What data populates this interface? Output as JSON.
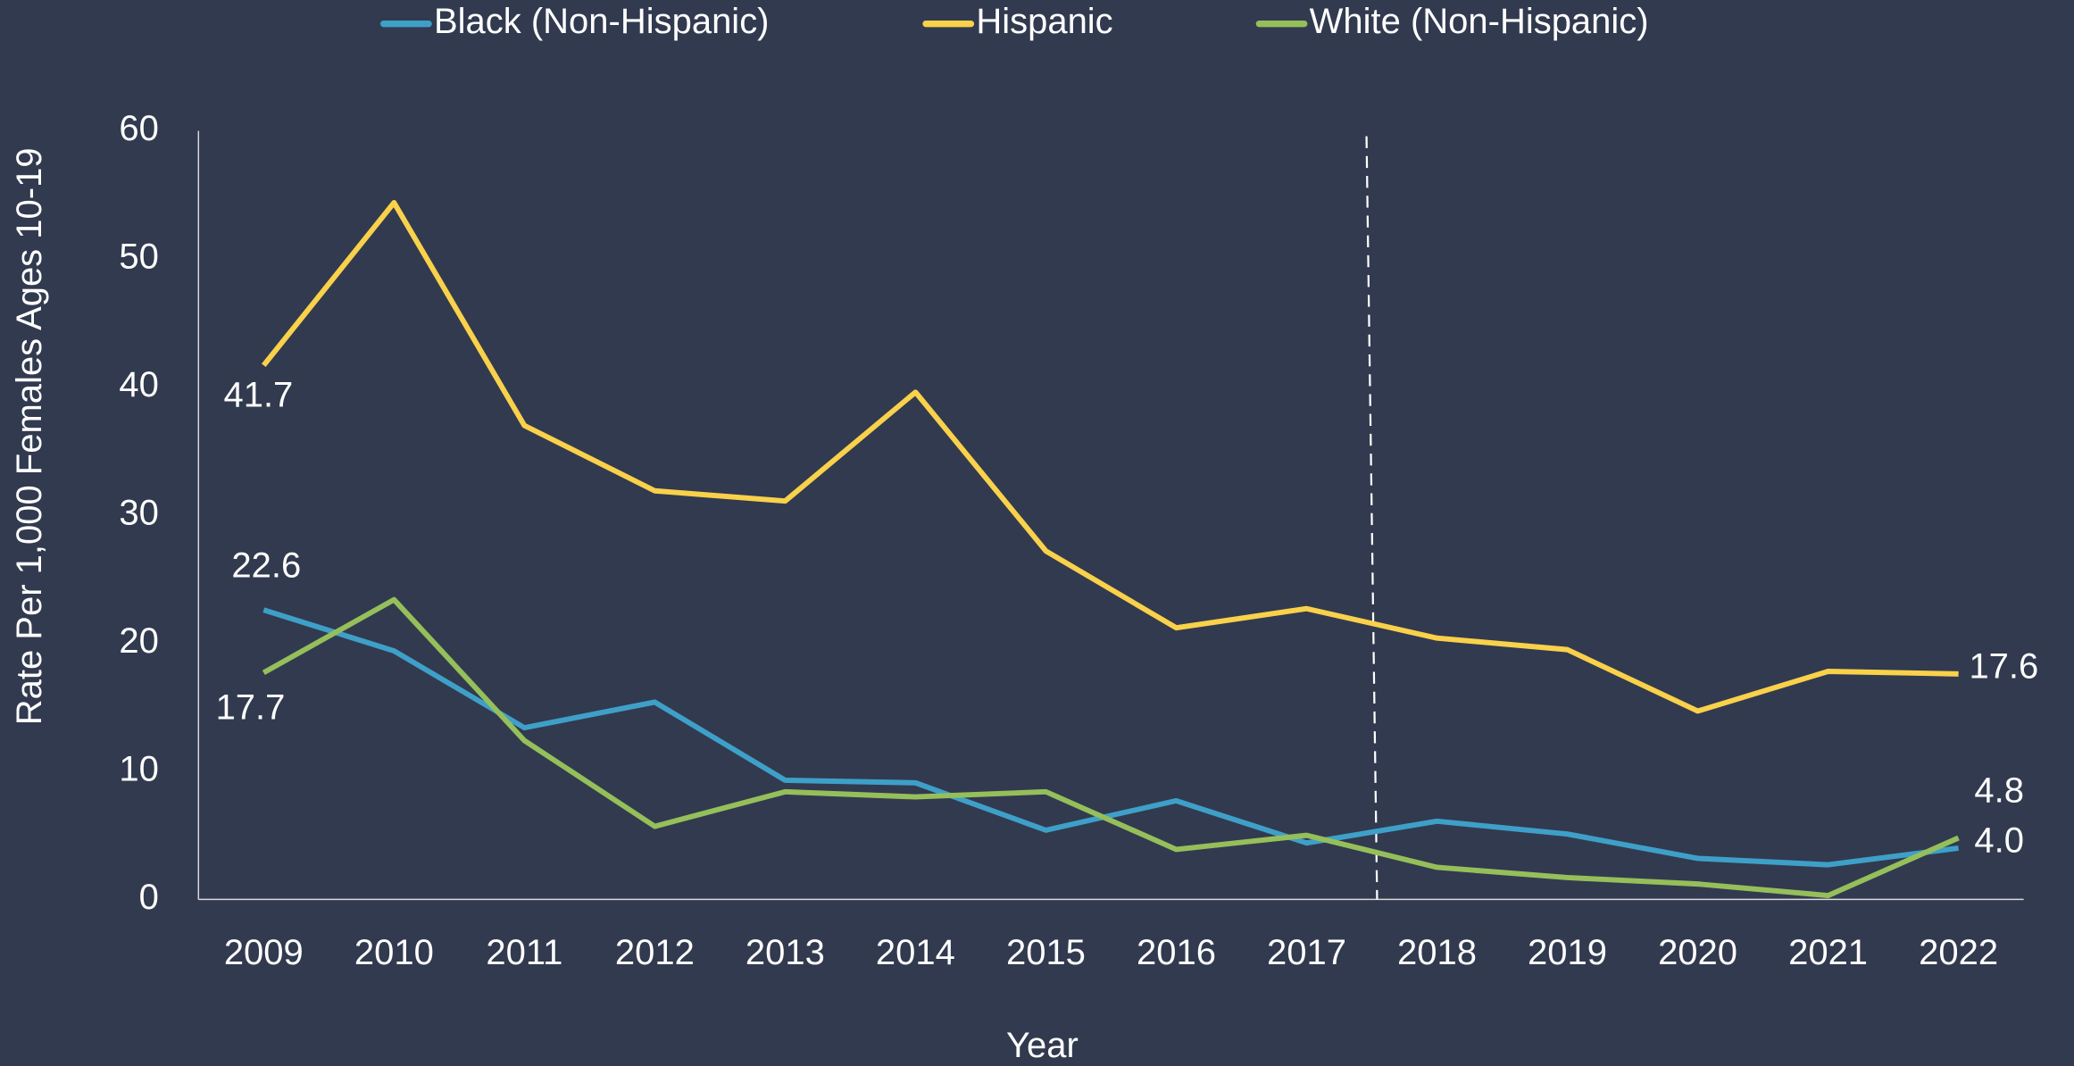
{
  "chart_data": {
    "type": "line",
    "x_label": "Year",
    "y_label": "Rate Per 1,000 Females Ages 10-19",
    "categories": [
      "2009",
      "2010",
      "2011",
      "2012",
      "2013",
      "2014",
      "2015",
      "2016",
      "2017",
      "2018",
      "2019",
      "2020",
      "2021",
      "2022"
    ],
    "series": [
      {
        "name": "Black (Non-Hispanic)",
        "color": "#3ea0c8",
        "values": [
          22.6,
          19.4,
          13.4,
          15.4,
          9.3,
          9.1,
          5.4,
          7.7,
          4.4,
          6.1,
          5.1,
          3.2,
          2.7,
          4.0
        ],
        "value_labels": [
          "22.6",
          null,
          null,
          null,
          null,
          null,
          null,
          null,
          null,
          null,
          null,
          null,
          null,
          "4.0"
        ]
      },
      {
        "name": "Hispanic",
        "color": "#f9d14a",
        "values": [
          41.7,
          54.4,
          37.0,
          31.9,
          31.1,
          39.6,
          27.2,
          21.2,
          22.7,
          20.4,
          19.5,
          14.7,
          17.8,
          17.6
        ],
        "value_labels": [
          "41.7",
          null,
          null,
          null,
          null,
          null,
          null,
          null,
          null,
          null,
          null,
          null,
          null,
          "17.6"
        ]
      },
      {
        "name": "White (Non-Hispanic)",
        "color": "#95bf5a",
        "values": [
          17.7,
          23.4,
          12.4,
          5.7,
          8.4,
          8.0,
          8.4,
          3.9,
          5.0,
          2.5,
          1.7,
          1.2,
          0.3,
          4.8
        ],
        "value_labels": [
          "17.7",
          null,
          null,
          null,
          null,
          null,
          null,
          null,
          null,
          null,
          null,
          null,
          null,
          "4.8"
        ]
      }
    ],
    "ylim": [
      0,
      60
    ],
    "yticks": [
      0,
      10,
      20,
      30,
      40,
      50,
      60
    ],
    "legend": "top",
    "grid": false
  }
}
